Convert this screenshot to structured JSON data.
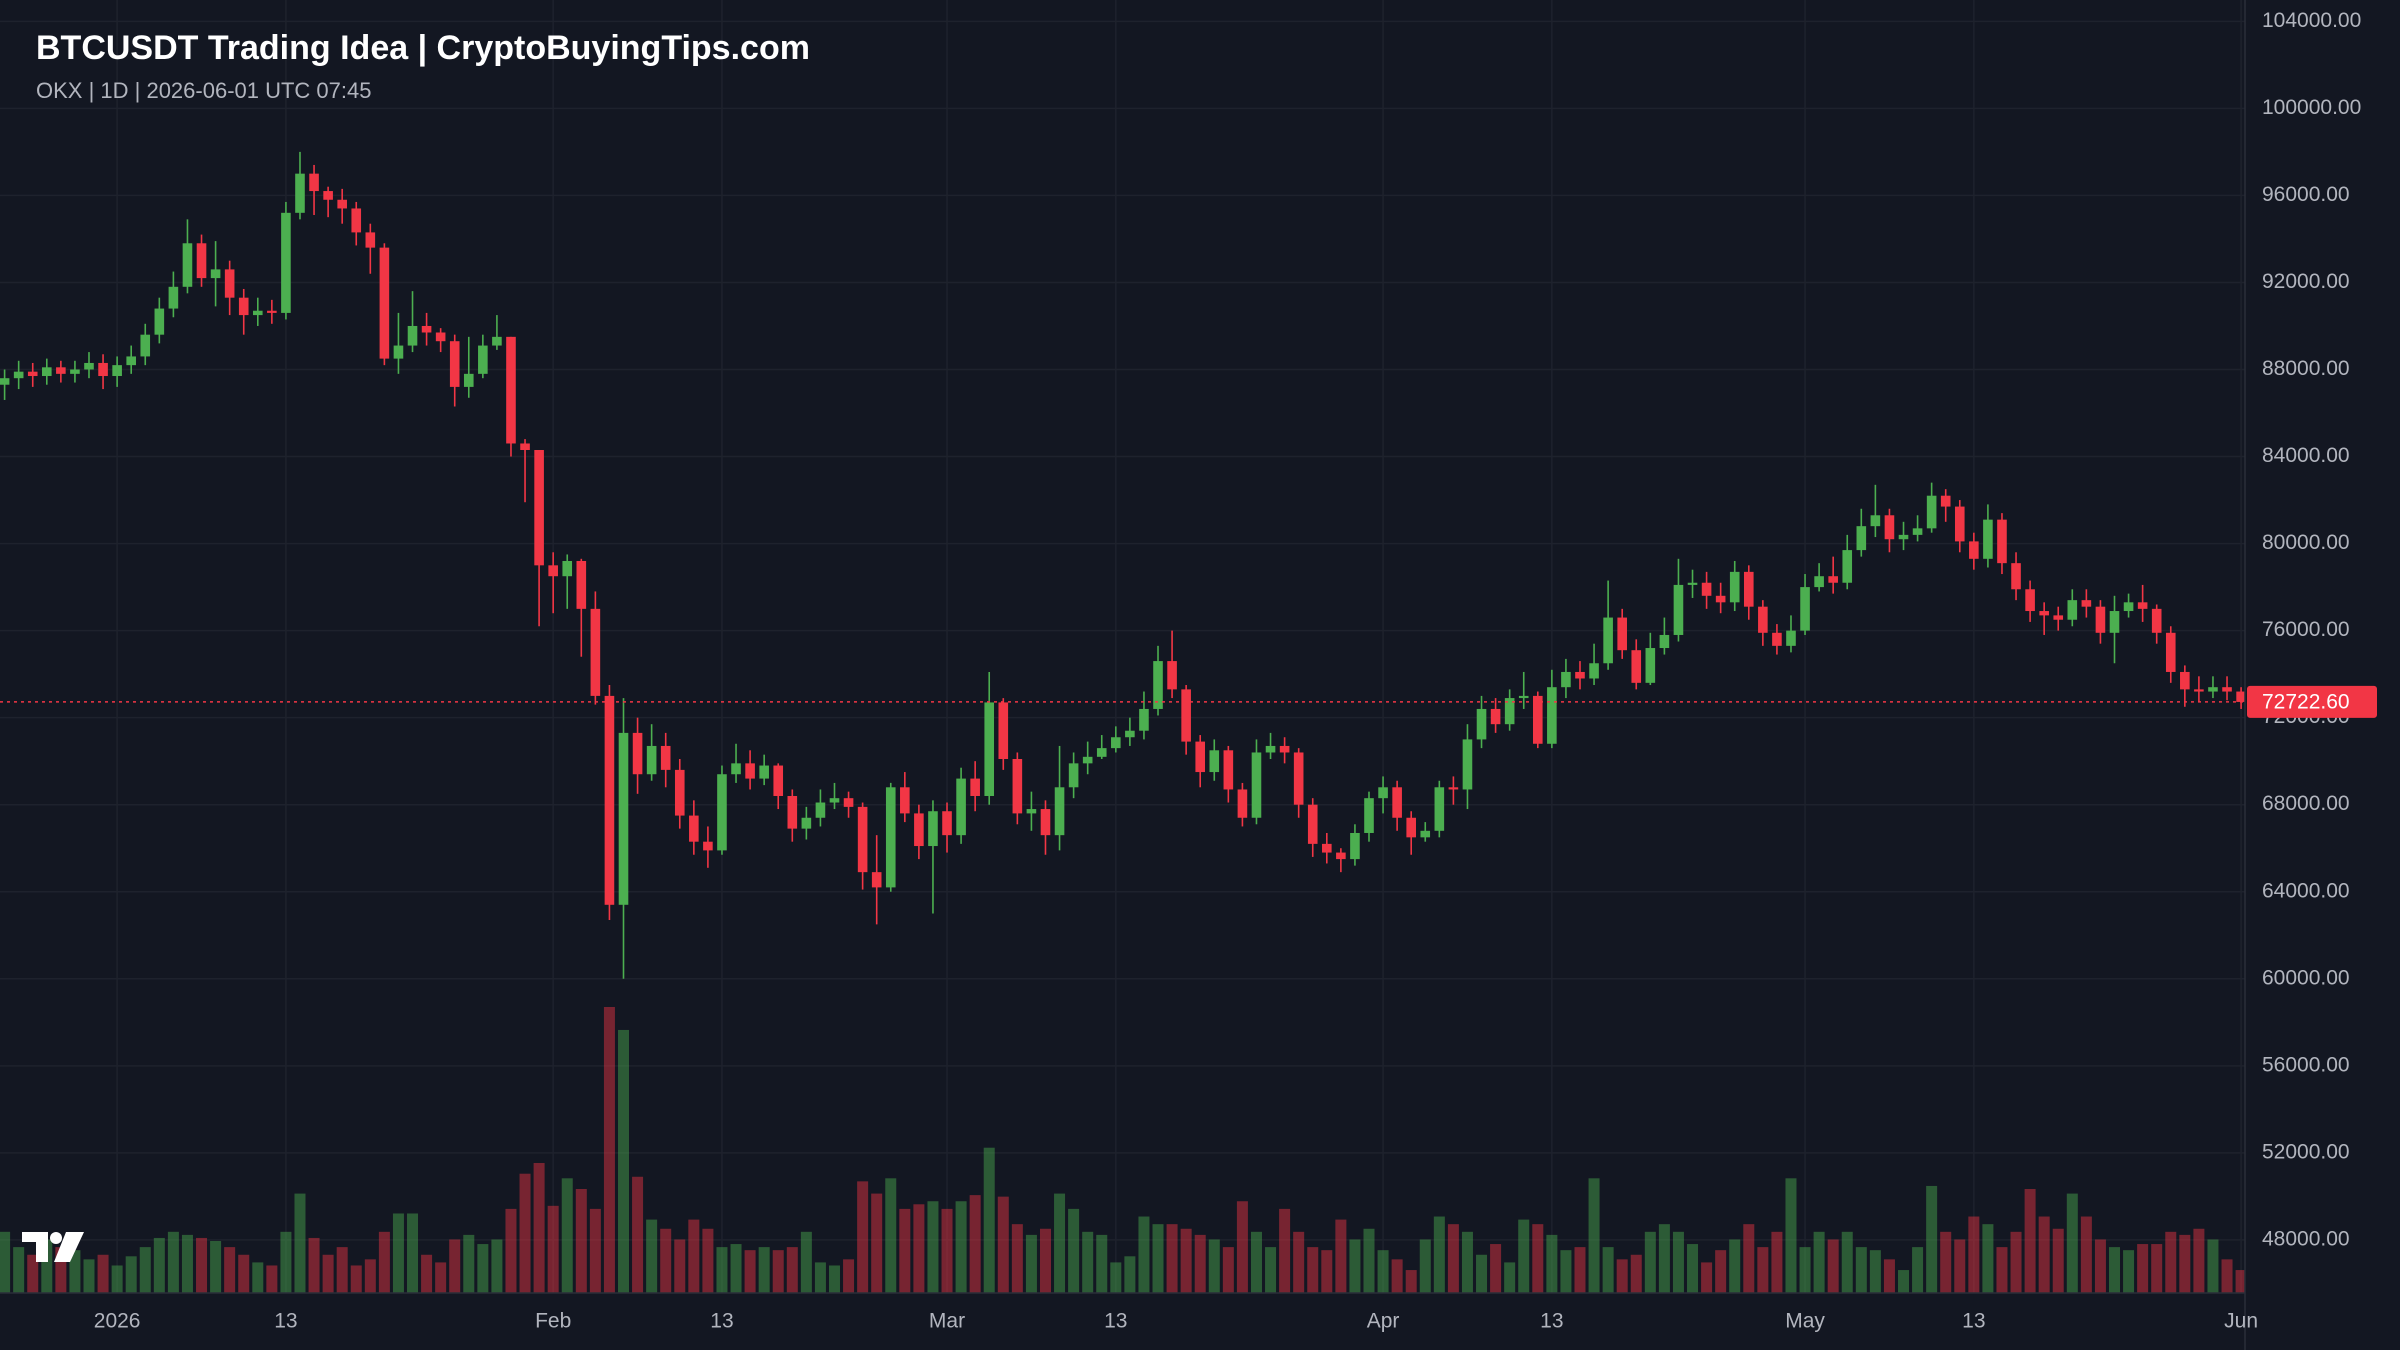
{
  "chart_data": {
    "type": "candlestick",
    "title": "BTCUSDT Trading Idea | CryptoBuyingTips.com",
    "subtitle": "OKX | 1D | 2026-06-01 UTC 07:45",
    "categories": [
      null,
      null,
      null,
      null,
      null,
      null,
      null,
      null,
      "2026",
      null,
      null,
      null,
      null,
      null,
      null,
      null,
      null,
      null,
      null,
      null,
      "13",
      null,
      null,
      null,
      null,
      null,
      null,
      null,
      null,
      null,
      null,
      null,
      null,
      null,
      null,
      null,
      null,
      null,
      null,
      "Feb",
      null,
      null,
      null,
      null,
      null,
      null,
      null,
      null,
      null,
      null,
      null,
      "13",
      null,
      null,
      null,
      null,
      null,
      null,
      null,
      null,
      null,
      null,
      null,
      null,
      null,
      null,
      null,
      "Mar",
      null,
      null,
      null,
      null,
      null,
      null,
      null,
      null,
      null,
      null,
      null,
      "13",
      null,
      null,
      null,
      null,
      null,
      null,
      null,
      null,
      null,
      null,
      null,
      null,
      null,
      null,
      null,
      null,
      null,
      null,
      "Apr",
      null,
      null,
      null,
      null,
      null,
      null,
      null,
      null,
      null,
      null,
      null,
      "13",
      null,
      null,
      null,
      null,
      null,
      null,
      null,
      null,
      null,
      null,
      null,
      null,
      null,
      null,
      null,
      null,
      null,
      "May",
      null,
      null,
      null,
      null,
      null,
      null,
      null,
      null,
      null,
      null,
      null,
      "13",
      null,
      null,
      null,
      null,
      null,
      null,
      null,
      null,
      null,
      null,
      null,
      null,
      null,
      null,
      null,
      null,
      null,
      null,
      "Jun"
    ],
    "open": [
      87300,
      87600,
      87900,
      87700,
      88100,
      87800,
      88000,
      88300,
      87700,
      88200,
      88600,
      89600,
      90800,
      91800,
      93800,
      92200,
      92600,
      91300,
      90500,
      90700,
      90600,
      95200,
      97000,
      96200,
      95800,
      95400,
      94300,
      93600,
      88500,
      89100,
      90000,
      89700,
      89300,
      87200,
      87800,
      89100,
      89500,
      84600,
      84300,
      79000,
      78500,
      79200,
      77000,
      73000,
      63400,
      71300,
      69400,
      70700,
      69600,
      67500,
      66300,
      65900,
      69400,
      69900,
      69200,
      69800,
      68400,
      66900,
      67400,
      68100,
      68300,
      67900,
      64900,
      64200,
      68800,
      67600,
      66100,
      67700,
      66600,
      69200,
      68400,
      72700,
      70100,
      67600,
      67800,
      66600,
      68800,
      69900,
      70200,
      70600,
      71100,
      71400,
      72400,
      74600,
      73300,
      70900,
      69500,
      70500,
      68700,
      67400,
      70400,
      70700,
      70400,
      68000,
      66200,
      65800,
      65500,
      66700,
      68300,
      68800,
      67400,
      66500,
      66800,
      68800,
      68700,
      71000,
      72400,
      71700,
      72900,
      73000,
      70800,
      73400,
      74100,
      73800,
      74500,
      76600,
      75100,
      73600,
      75200,
      75800,
      78100,
      78200,
      77600,
      77300,
      78700,
      77100,
      75900,
      75300,
      76000,
      78000,
      78500,
      78200,
      79700,
      80800,
      81300,
      80200,
      80400,
      80700,
      82200,
      81700,
      80100,
      79300,
      81100,
      79100,
      77900,
      76900,
      76700,
      76500,
      77400,
      77100,
      75900,
      76900,
      77300,
      77000,
      75900,
      74100,
      73300,
      73200,
      73400,
      73200
    ],
    "high": [
      88000,
      88400,
      88300,
      88500,
      88400,
      88400,
      88800,
      88700,
      88600,
      89100,
      90100,
      91300,
      92500,
      94900,
      94200,
      93900,
      93000,
      91700,
      91300,
      91200,
      95700,
      98000,
      97400,
      96400,
      96300,
      95700,
      94700,
      93800,
      90600,
      91600,
      90600,
      89900,
      89600,
      89500,
      89600,
      90500,
      89500,
      84800,
      84300,
      79600,
      79500,
      79300,
      77800,
      73500,
      72900,
      72000,
      71700,
      71300,
      70100,
      68200,
      67000,
      69800,
      70800,
      70500,
      70300,
      69900,
      68700,
      67900,
      68700,
      69000,
      68600,
      68100,
      66600,
      69000,
      69500,
      68000,
      68200,
      68100,
      69700,
      70000,
      74100,
      72900,
      70400,
      68600,
      68200,
      70700,
      70400,
      70900,
      71200,
      71600,
      72000,
      73200,
      75300,
      76000,
      73500,
      71200,
      71000,
      70700,
      69000,
      71000,
      71300,
      71100,
      70600,
      68300,
      66700,
      66000,
      67100,
      68600,
      69300,
      69100,
      67700,
      67200,
      69100,
      69300,
      71700,
      73000,
      72900,
      73300,
      74100,
      73200,
      74200,
      74700,
      74600,
      75400,
      78300,
      77000,
      75600,
      75900,
      76600,
      79300,
      78800,
      78700,
      78200,
      79200,
      79000,
      77400,
      76300,
      76700,
      78600,
      79100,
      79400,
      80400,
      81600,
      82700,
      81600,
      81000,
      81300,
      82800,
      82500,
      82000,
      80500,
      81800,
      81400,
      79600,
      78300,
      77300,
      77100,
      77900,
      77900,
      77400,
      77600,
      77700,
      78100,
      77200,
      76200,
      74400,
      73900,
      73900,
      73900,
      73400
    ],
    "low": [
      86600,
      87100,
      87200,
      87300,
      87400,
      87400,
      87600,
      87100,
      87200,
      87800,
      88200,
      89200,
      90400,
      91500,
      91800,
      90900,
      90500,
      89600,
      90000,
      90100,
      90300,
      94900,
      95100,
      95000,
      94700,
      93700,
      92400,
      88200,
      87800,
      88800,
      89100,
      88800,
      86300,
      86700,
      87600,
      88900,
      84000,
      81900,
      76200,
      76800,
      77000,
      74800,
      72600,
      62700,
      60000,
      68500,
      69100,
      68800,
      66900,
      65700,
      65100,
      65700,
      69000,
      68700,
      68900,
      67800,
      66300,
      66400,
      67000,
      67800,
      67400,
      64100,
      62500,
      64000,
      67200,
      65500,
      63000,
      65800,
      66200,
      67700,
      68000,
      69600,
      67100,
      66800,
      65700,
      65900,
      68300,
      69400,
      70100,
      70400,
      70700,
      71000,
      72100,
      72900,
      70300,
      68800,
      69100,
      68100,
      67000,
      67100,
      70100,
      69900,
      67400,
      65600,
      65300,
      64900,
      65200,
      66300,
      67600,
      66800,
      65700,
      66300,
      66500,
      68000,
      67800,
      70600,
      71300,
      71400,
      72400,
      70600,
      70600,
      72900,
      73300,
      73500,
      74200,
      74700,
      73300,
      73500,
      74900,
      75500,
      77500,
      77000,
      76800,
      76900,
      76500,
      75300,
      74900,
      75000,
      75800,
      77800,
      77700,
      77900,
      79400,
      80300,
      79600,
      79700,
      80100,
      80500,
      81000,
      79600,
      78800,
      78900,
      78600,
      77400,
      76400,
      75800,
      76000,
      76200,
      76600,
      75400,
      74500,
      76600,
      76400,
      75400,
      73600,
      72500,
      72700,
      72900,
      72800,
      72400
    ],
    "close": [
      87600,
      87900,
      87700,
      88100,
      87800,
      88000,
      88300,
      87700,
      88200,
      88600,
      89600,
      90800,
      91800,
      93800,
      92200,
      92600,
      91300,
      90500,
      90700,
      90600,
      95200,
      97000,
      96200,
      95800,
      95400,
      94300,
      93600,
      88500,
      89100,
      90000,
      89700,
      89300,
      87200,
      87800,
      89100,
      89500,
      84600,
      84300,
      79000,
      78500,
      79200,
      77000,
      73000,
      63400,
      71300,
      69400,
      70700,
      69600,
      67500,
      66300,
      65900,
      69400,
      69900,
      69200,
      69800,
      68400,
      66900,
      67400,
      68100,
      68300,
      67900,
      64900,
      64200,
      68800,
      67600,
      66100,
      67700,
      66600,
      69200,
      68400,
      72700,
      70100,
      67600,
      67800,
      66600,
      68800,
      69900,
      70200,
      70600,
      71100,
      71400,
      72400,
      74600,
      73300,
      70900,
      69500,
      70500,
      68700,
      67400,
      70400,
      70700,
      70400,
      68000,
      66200,
      65800,
      65500,
      66700,
      68300,
      68800,
      67400,
      66500,
      66800,
      68800,
      68700,
      71000,
      72400,
      71700,
      72900,
      73000,
      70800,
      73400,
      74100,
      73800,
      74500,
      76600,
      75100,
      73600,
      75200,
      75800,
      78100,
      78200,
      77600,
      77300,
      78700,
      77100,
      75900,
      75300,
      76000,
      78000,
      78500,
      78200,
      79700,
      80800,
      81300,
      80200,
      80400,
      80700,
      82200,
      81700,
      80100,
      79300,
      81100,
      79100,
      77900,
      76900,
      76700,
      76500,
      77400,
      77100,
      75900,
      76900,
      77300,
      77000,
      75900,
      74100,
      73300,
      73200,
      73400,
      73200,
      72722.6
    ],
    "volume": [
      40,
      30,
      25,
      35,
      30,
      28,
      22,
      25,
      18,
      24,
      30,
      36,
      40,
      38,
      36,
      34,
      30,
      25,
      20,
      18,
      40,
      65,
      36,
      25,
      30,
      18,
      22,
      40,
      52,
      52,
      25,
      20,
      35,
      38,
      32,
      35,
      55,
      78,
      85,
      57,
      75,
      68,
      55,
      187,
      172,
      76,
      48,
      42,
      35,
      48,
      42,
      30,
      32,
      28,
      30,
      28,
      30,
      40,
      20,
      18,
      22,
      73,
      65,
      75,
      55,
      58,
      60,
      55,
      60,
      64,
      95,
      63,
      45,
      38,
      42,
      65,
      55,
      40,
      38,
      20,
      24,
      50,
      45,
      45,
      42,
      38,
      35,
      30,
      60,
      40,
      30,
      55,
      40,
      30,
      28,
      48,
      35,
      42,
      28,
      22,
      15,
      35,
      50,
      45,
      40,
      25,
      32,
      20,
      48,
      45,
      38,
      28,
      30,
      75,
      30,
      22,
      25,
      40,
      45,
      40,
      32,
      20,
      28,
      35,
      45,
      30,
      40,
      75,
      30,
      40,
      35,
      40,
      30,
      28,
      22,
      15,
      30,
      70,
      40,
      35,
      50,
      45,
      30,
      40,
      68,
      50,
      42,
      65,
      50,
      35,
      30,
      28,
      32,
      32,
      40,
      38,
      42,
      35,
      22,
      15
    ],
    "ylim": [
      45560,
      104980
    ],
    "yticks": [
      {
        "value": 48000,
        "label": "48000.00"
      },
      {
        "value": 52000,
        "label": "52000.00"
      },
      {
        "value": 56000,
        "label": "56000.00"
      },
      {
        "value": 60000,
        "label": "60000.00"
      },
      {
        "value": 64000,
        "label": "64000.00"
      },
      {
        "value": 68000,
        "label": "68000.00"
      },
      {
        "value": 72000,
        "label": "72000.00"
      },
      {
        "value": 76000,
        "label": "76000.00"
      },
      {
        "value": 80000,
        "label": "80000.00"
      },
      {
        "value": 84000,
        "label": "84000.00"
      },
      {
        "value": 88000,
        "label": "88000.00"
      },
      {
        "value": 92000,
        "label": "92000.00"
      },
      {
        "value": 96000,
        "label": "96000.00"
      },
      {
        "value": 100000,
        "label": "100000.00"
      },
      {
        "value": 104000,
        "label": "104000.00"
      }
    ],
    "last_price": {
      "value": 72722.6,
      "label": "72722.60"
    },
    "up_color": "#4caf50",
    "down_color": "#f23645",
    "grid": true
  }
}
